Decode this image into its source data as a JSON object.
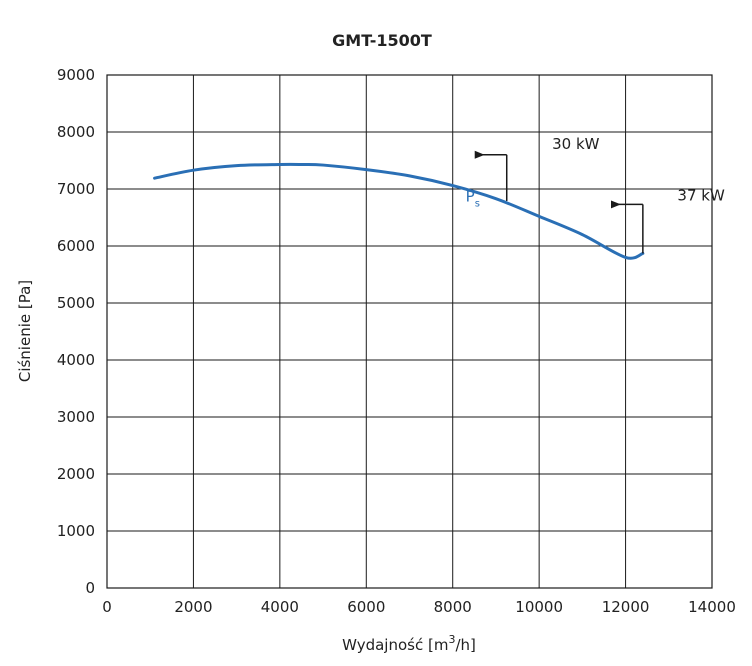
{
  "chart_data": {
    "type": "line",
    "title": "GMT-1500T",
    "xlabel": "Wydajność [m",
    "xlabel_sup": "3",
    "xlabel_end": "/h]",
    "ylabel": "Ciśnienie [Pa]",
    "xlim": [
      0,
      14000
    ],
    "ylim": [
      0,
      9000
    ],
    "xticks": [
      "0",
      "2000",
      "4000",
      "6000",
      "8000",
      "10000",
      "12000",
      "14000"
    ],
    "yticks": [
      "0",
      "1000",
      "2000",
      "3000",
      "4000",
      "5000",
      "6000",
      "7000",
      "8000",
      "9000"
    ],
    "grid": true,
    "series": [
      {
        "name": "P",
        "name_sub": "s",
        "color": "#2a6fb5",
        "x": [
          1100,
          2000,
          3000,
          4000,
          4500,
          5000,
          6000,
          7000,
          8000,
          9000,
          10000,
          11000,
          12000,
          12400
        ],
        "y": [
          7190,
          7330,
          7410,
          7430,
          7430,
          7420,
          7340,
          7230,
          7060,
          6830,
          6520,
          6200,
          5800,
          5870
        ]
      }
    ],
    "annotations": [
      {
        "text": "30 kW",
        "x": 9250,
        "y": 6790
      },
      {
        "text": "37 kW",
        "x": 12400,
        "y": 5870
      }
    ]
  }
}
